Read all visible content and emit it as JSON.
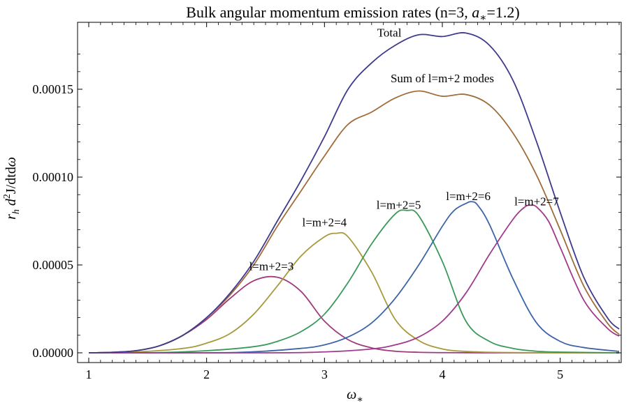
{
  "chart_data": {
    "type": "line",
    "title": "Bulk angular momentum emission rates (n=3, ",
    "title_sym": "a",
    "title_sub": "∗",
    "title_tail": "=1.2)",
    "xlabel": {
      "sym": "ω",
      "sub": "∗"
    },
    "ylabel": {
      "r": "r",
      "r_sub": "h",
      "d": " d",
      "sup": "2",
      "rest": "J/dtd",
      "omega": "ω"
    },
    "xlim": [
      1,
      5.5
    ],
    "ylim": [
      0,
      0.000185
    ],
    "xticks": [
      1,
      2,
      3,
      4,
      5
    ],
    "xtick_labels": [
      "1",
      "2",
      "3",
      "4",
      "5"
    ],
    "yticks": [
      0,
      5e-05,
      0.0001,
      0.00015
    ],
    "ytick_labels": [
      "0.00000",
      "0.00005",
      "0.00010",
      "0.00015"
    ],
    "grid": false,
    "series": [
      {
        "name": "Total",
        "color": "#3e3a8e",
        "x": [
          1,
          1.2,
          1.4,
          1.6,
          1.8,
          2,
          2.2,
          2.4,
          2.6,
          2.8,
          3,
          3.2,
          3.4,
          3.6,
          3.8,
          4,
          4.2,
          4.4,
          4.6,
          4.8,
          5,
          5.2,
          5.4,
          5.5
        ],
        "y": [
          0,
          3e-07,
          1.2e-06,
          4e-06,
          1e-05,
          2e-05,
          3.4e-05,
          5.2e-05,
          7.5e-05,
          9.8e-05,
          0.000123,
          0.00015,
          0.000165,
          0.000175,
          0.000181,
          0.00018,
          0.000182,
          0.000175,
          0.000155,
          0.00012,
          8e-05,
          4.3e-05,
          2e-05,
          1.35e-05
        ]
      },
      {
        "name": "Sum of l=m+2 modes",
        "color": "#a06c3a",
        "x": [
          1,
          1.2,
          1.4,
          1.6,
          1.8,
          2,
          2.2,
          2.4,
          2.6,
          2.8,
          3,
          3.2,
          3.4,
          3.6,
          3.8,
          4,
          4.2,
          4.4,
          4.6,
          4.8,
          5,
          5.2,
          5.4,
          5.5
        ],
        "y": [
          0,
          3e-07,
          1.2e-06,
          4e-06,
          1e-05,
          2e-05,
          3.3e-05,
          5e-05,
          7.2e-05,
          9.2e-05,
          0.000112,
          0.00013,
          0.000137,
          0.000145,
          0.000149,
          0.000146,
          0.000147,
          0.000141,
          0.000125,
          0.000101,
          7e-05,
          3.8e-05,
          1.7e-05,
          1.05e-05
        ]
      },
      {
        "name": "l=m+2=3",
        "color": "#a03a7a",
        "x": [
          1,
          1.2,
          1.4,
          1.6,
          1.8,
          2,
          2.2,
          2.4,
          2.6,
          2.8,
          3,
          3.2,
          3.4,
          3.6,
          3.8,
          4,
          4.5,
          5,
          5.5
        ],
        "y": [
          0,
          3e-07,
          1.2e-06,
          4e-06,
          1e-05,
          1.9e-05,
          3.1e-05,
          4.1e-05,
          4.3e-05,
          3.5e-05,
          1.8e-05,
          7.5e-06,
          2.8e-06,
          9e-07,
          3e-07,
          1e-07,
          0,
          0,
          0
        ]
      },
      {
        "name": "l=m+2=4",
        "color": "#a89a3c",
        "x": [
          1,
          1.4,
          1.8,
          2,
          2.2,
          2.4,
          2.6,
          2.8,
          3,
          3.1,
          3.2,
          3.4,
          3.6,
          3.8,
          4,
          4.2,
          4.5,
          5,
          5.5
        ],
        "y": [
          0,
          5e-07,
          2.5e-06,
          5.5e-06,
          1.1e-05,
          2.2e-05,
          3.8e-05,
          5.5e-05,
          6.6e-05,
          6.8e-05,
          6.6e-05,
          4.6e-05,
          1.9e-05,
          7e-06,
          2.2e-06,
          8e-07,
          2e-07,
          0,
          0
        ]
      },
      {
        "name": "l=m+2=5",
        "color": "#3a9a5a",
        "x": [
          1,
          1.5,
          2,
          2.4,
          2.6,
          2.8,
          3,
          3.2,
          3.4,
          3.6,
          3.7,
          3.8,
          4,
          4.2,
          4.4,
          4.6,
          4.8,
          5,
          5.5
        ],
        "y": [
          0,
          0,
          1.2e-06,
          3.5e-06,
          6.5e-06,
          1.2e-05,
          2.2e-05,
          4e-05,
          6.2e-05,
          7.9e-05,
          8.1e-05,
          7.8e-05,
          5.2e-05,
          1.8e-05,
          6.5e-06,
          2.5e-06,
          9e-07,
          4e-07,
          0
        ]
      },
      {
        "name": "l=m+2=6",
        "color": "#3c64a8",
        "x": [
          1,
          2,
          2.4,
          2.8,
          3,
          3.2,
          3.4,
          3.6,
          3.8,
          4,
          4.1,
          4.2,
          4.25,
          4.3,
          4.4,
          4.6,
          4.8,
          5,
          5.2,
          5.5
        ],
        "y": [
          0,
          0,
          6e-07,
          2.5e-06,
          4.5e-06,
          9e-06,
          1.7e-05,
          3.1e-05,
          5e-05,
          7.2e-05,
          8.1e-05,
          8.5e-05,
          8.6e-05,
          8.4e-05,
          7.3e-05,
          4.2e-05,
          1.7e-05,
          6.5e-06,
          3e-06,
          8e-07
        ]
      },
      {
        "name": "l=m+2=7",
        "color": "#a03a8c",
        "x": [
          1,
          2.5,
          3,
          3.4,
          3.6,
          3.8,
          4,
          4.2,
          4.4,
          4.6,
          4.7,
          4.75,
          4.8,
          4.9,
          5,
          5.2,
          5.4,
          5.5
        ],
        "y": [
          0,
          0,
          5e-07,
          2.2e-06,
          4.5e-06,
          9e-06,
          1.8e-05,
          3.4e-05,
          5.6e-05,
          7.6e-05,
          8.3e-05,
          8.4e-05,
          8.3e-05,
          7.5e-05,
          6e-05,
          3e-05,
          1.4e-05,
          9.5e-06
        ]
      }
    ],
    "annotations": [
      {
        "text": "Total",
        "x": 3.55,
        "y": 0.00018
      },
      {
        "text": "Sum of l=m+2 modes",
        "x": 4.0,
        "y": 0.000154
      },
      {
        "text": "l=m+2=3",
        "x": 2.55,
        "y": 4.7e-05
      },
      {
        "text": "l=m+2=4",
        "x": 3.0,
        "y": 7.2e-05
      },
      {
        "text": "l=m+2=5",
        "x": 3.63,
        "y": 8.2e-05
      },
      {
        "text": "l=m+2=6",
        "x": 4.22,
        "y": 8.7e-05
      },
      {
        "text": "l=m+2=7",
        "x": 4.8,
        "y": 8.4e-05
      }
    ]
  }
}
